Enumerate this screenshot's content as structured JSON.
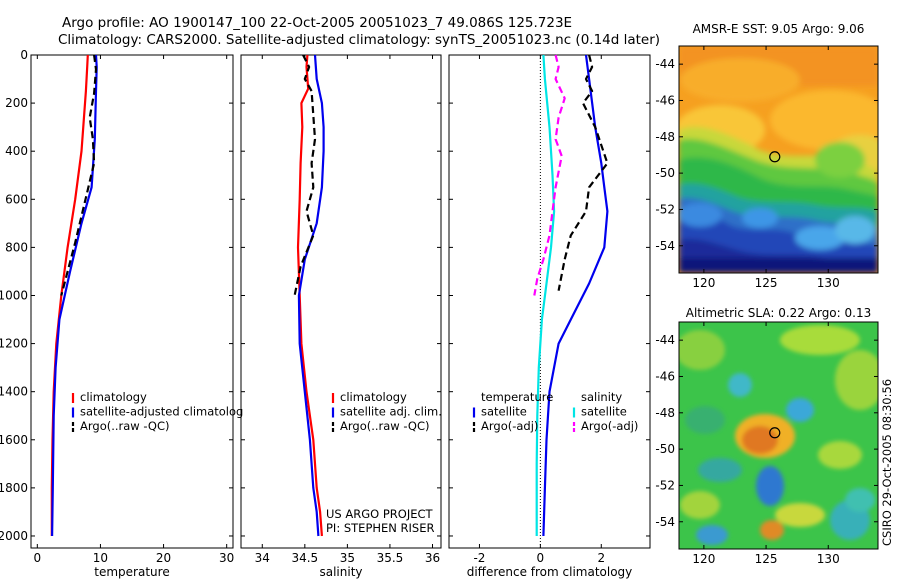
{
  "figure": {
    "title_line1": "Argo profile: AO 1900147_100 22-Oct-2005 20051023_7 49.086S 125.723E",
    "title_line2": "Climatology: CARS2000. Satellite-adjusted climatology: synTS_20051023.nc (0.14d later)",
    "stamp": "CSIRO 29-Oct-2005 08:30:56",
    "project_line1": "US ARGO PROJECT",
    "project_line2": "PI: STEPHEN RISER"
  },
  "colors": {
    "climatology": "#ff0000",
    "satellite": "#0000ee",
    "argo": "#000000",
    "cyan": "#00e5e5",
    "magenta": "#ff00ff"
  },
  "chart_data": [
    {
      "type": "line",
      "xlabel": "temperature",
      "xlim": [
        -1,
        31
      ],
      "ylim": [
        2050,
        0
      ],
      "y_reversed": true,
      "xticks": [
        0,
        10,
        20,
        30
      ],
      "yticks": [
        0,
        200,
        400,
        600,
        800,
        1000,
        1200,
        1400,
        1600,
        1800,
        2000
      ],
      "legend": [
        "climatology",
        "satellite-adjusted climatolog",
        "Argo(..raw -QC)"
      ],
      "legend_placement": "lower-right",
      "series": [
        {
          "name": "climatology",
          "color_key": "climatology",
          "dash": "solid",
          "x": [
            8.0,
            7.9,
            7.7,
            7.0,
            6.0,
            4.8,
            3.8,
            3.0,
            2.6,
            2.4,
            2.3,
            2.3
          ],
          "y": [
            0,
            50,
            150,
            400,
            600,
            800,
            1000,
            1200,
            1400,
            1600,
            1800,
            2000
          ]
        },
        {
          "name": "satellite-adjusted climatology",
          "color_key": "satellite",
          "dash": "solid",
          "x": [
            9.3,
            9.4,
            9.3,
            9.1,
            8.6,
            7.0,
            5.2,
            3.5,
            2.9,
            2.6,
            2.45,
            2.35
          ],
          "y": [
            0,
            50,
            150,
            350,
            550,
            700,
            900,
            1100,
            1300,
            1500,
            1800,
            2000
          ]
        },
        {
          "name": "Argo(..raw -QC)",
          "color_key": "argo",
          "dash": "dashed",
          "x": [
            9.0,
            9.3,
            9.0,
            8.3,
            8.8,
            9.0,
            8.0,
            6.0,
            3.8
          ],
          "y": [
            0,
            60,
            160,
            260,
            350,
            450,
            560,
            780,
            1000
          ]
        }
      ]
    },
    {
      "type": "line",
      "xlabel": "salinity",
      "xlim": [
        33.75,
        36.1
      ],
      "ylim": [
        2050,
        0
      ],
      "y_reversed": true,
      "xticks": [
        34,
        34.5,
        35,
        35.5,
        36
      ],
      "xticklabels": [
        "34",
        "34.5",
        "35",
        "35.5",
        "36"
      ],
      "legend": [
        "climatology",
        "satellite adj. clim.",
        "Argo(..raw -QC)"
      ],
      "legend_placement": "lower-right",
      "series": [
        {
          "name": "climatology",
          "color_key": "climatology",
          "dash": "solid",
          "x": [
            34.53,
            34.52,
            34.54,
            34.46,
            34.47,
            34.45,
            34.44,
            34.42,
            34.44,
            34.46,
            34.52,
            34.6,
            34.64,
            34.68,
            34.7
          ],
          "y": [
            0,
            50,
            140,
            200,
            300,
            450,
            600,
            800,
            1000,
            1200,
            1400,
            1600,
            1800,
            1900,
            2000
          ]
        },
        {
          "name": "satellite adj. clim.",
          "color_key": "satellite",
          "dash": "solid",
          "x": [
            34.62,
            34.64,
            34.7,
            34.72,
            34.72,
            34.7,
            34.64,
            34.5,
            34.43,
            34.44,
            34.5,
            34.56,
            34.6,
            34.64,
            34.66
          ],
          "y": [
            0,
            100,
            200,
            300,
            400,
            550,
            700,
            850,
            1000,
            1200,
            1400,
            1600,
            1800,
            1900,
            2000
          ]
        },
        {
          "name": "Argo(..raw -QC)",
          "color_key": "argo",
          "dash": "dashed",
          "x": [
            34.48,
            34.55,
            34.5,
            34.58,
            34.6,
            34.62,
            34.58,
            34.6,
            34.52,
            34.6,
            34.45,
            34.38
          ],
          "y": [
            0,
            50,
            100,
            150,
            250,
            350,
            450,
            550,
            650,
            750,
            880,
            1000
          ]
        }
      ]
    },
    {
      "type": "line",
      "xlabel": "difference from climatology",
      "xlim": [
        -3,
        3.6
      ],
      "ylim": [
        2050,
        0
      ],
      "y_reversed": true,
      "xticks": [
        -2,
        0,
        2
      ],
      "zero_line": true,
      "legend_left": [
        "temperature",
        "satellite",
        "Argo(-adj)"
      ],
      "legend_right": [
        "salinity",
        "satellite",
        "Argo(-adj)"
      ],
      "legend_placement": "lower-center",
      "series": [
        {
          "name": "temperature satellite",
          "color_key": "satellite",
          "dash": "solid",
          "x": [
            1.5,
            1.6,
            1.8,
            2.0,
            2.1,
            2.2,
            2.1,
            1.6,
            1.0,
            0.6,
            0.3,
            0.2,
            0.15,
            0.1
          ],
          "y": [
            0,
            100,
            300,
            450,
            550,
            650,
            800,
            950,
            1100,
            1200,
            1400,
            1600,
            1800,
            2000
          ]
        },
        {
          "name": "temperature Argo(-adj)",
          "color_key": "argo",
          "dash": "dashed",
          "x": [
            1.6,
            1.7,
            1.5,
            1.7,
            1.4,
            1.8,
            2.2,
            1.6,
            1.5,
            1.0,
            0.8,
            0.6
          ],
          "y": [
            0,
            50,
            100,
            150,
            200,
            300,
            450,
            550,
            650,
            750,
            850,
            980
          ]
        },
        {
          "name": "salinity satellite",
          "color_key": "cyan",
          "dash": "solid",
          "x": [
            0.1,
            0.15,
            0.3,
            0.4,
            0.45,
            0.35,
            0.2,
            0.05,
            -0.05,
            -0.1,
            -0.12,
            -0.12,
            -0.12
          ],
          "y": [
            0,
            100,
            300,
            500,
            650,
            800,
            950,
            1100,
            1300,
            1500,
            1700,
            1900,
            2000
          ]
        },
        {
          "name": "salinity Argo(-adj)",
          "color_key": "magenta",
          "dash": "dashed",
          "x": [
            0.5,
            0.6,
            0.5,
            0.8,
            0.6,
            0.5,
            0.7,
            0.5,
            0.4,
            0.3,
            0.1,
            -0.1,
            -0.2
          ],
          "y": [
            0,
            50,
            100,
            180,
            260,
            350,
            420,
            550,
            650,
            750,
            850,
            930,
            1000
          ]
        }
      ]
    }
  ],
  "maps": [
    {
      "title": "AMSR-E SST: 9.05 Argo: 9.06",
      "xlim": [
        118,
        134
      ],
      "ylim": [
        -55.5,
        -43
      ],
      "xticks": [
        120,
        125,
        130
      ],
      "yticks": [
        -44,
        -46,
        -48,
        -50,
        -52,
        -54
      ],
      "marker_lon": 125.7,
      "marker_lat": -49.1
    },
    {
      "title": "Altimetric SLA: 0.22 Argo: 0.13",
      "xlim": [
        118,
        134
      ],
      "ylim": [
        -55.5,
        -43
      ],
      "xticks": [
        120,
        125,
        130
      ],
      "yticks": [
        -44,
        -46,
        -48,
        -50,
        -52,
        -54
      ],
      "marker_lon": 125.7,
      "marker_lat": -49.1
    }
  ]
}
